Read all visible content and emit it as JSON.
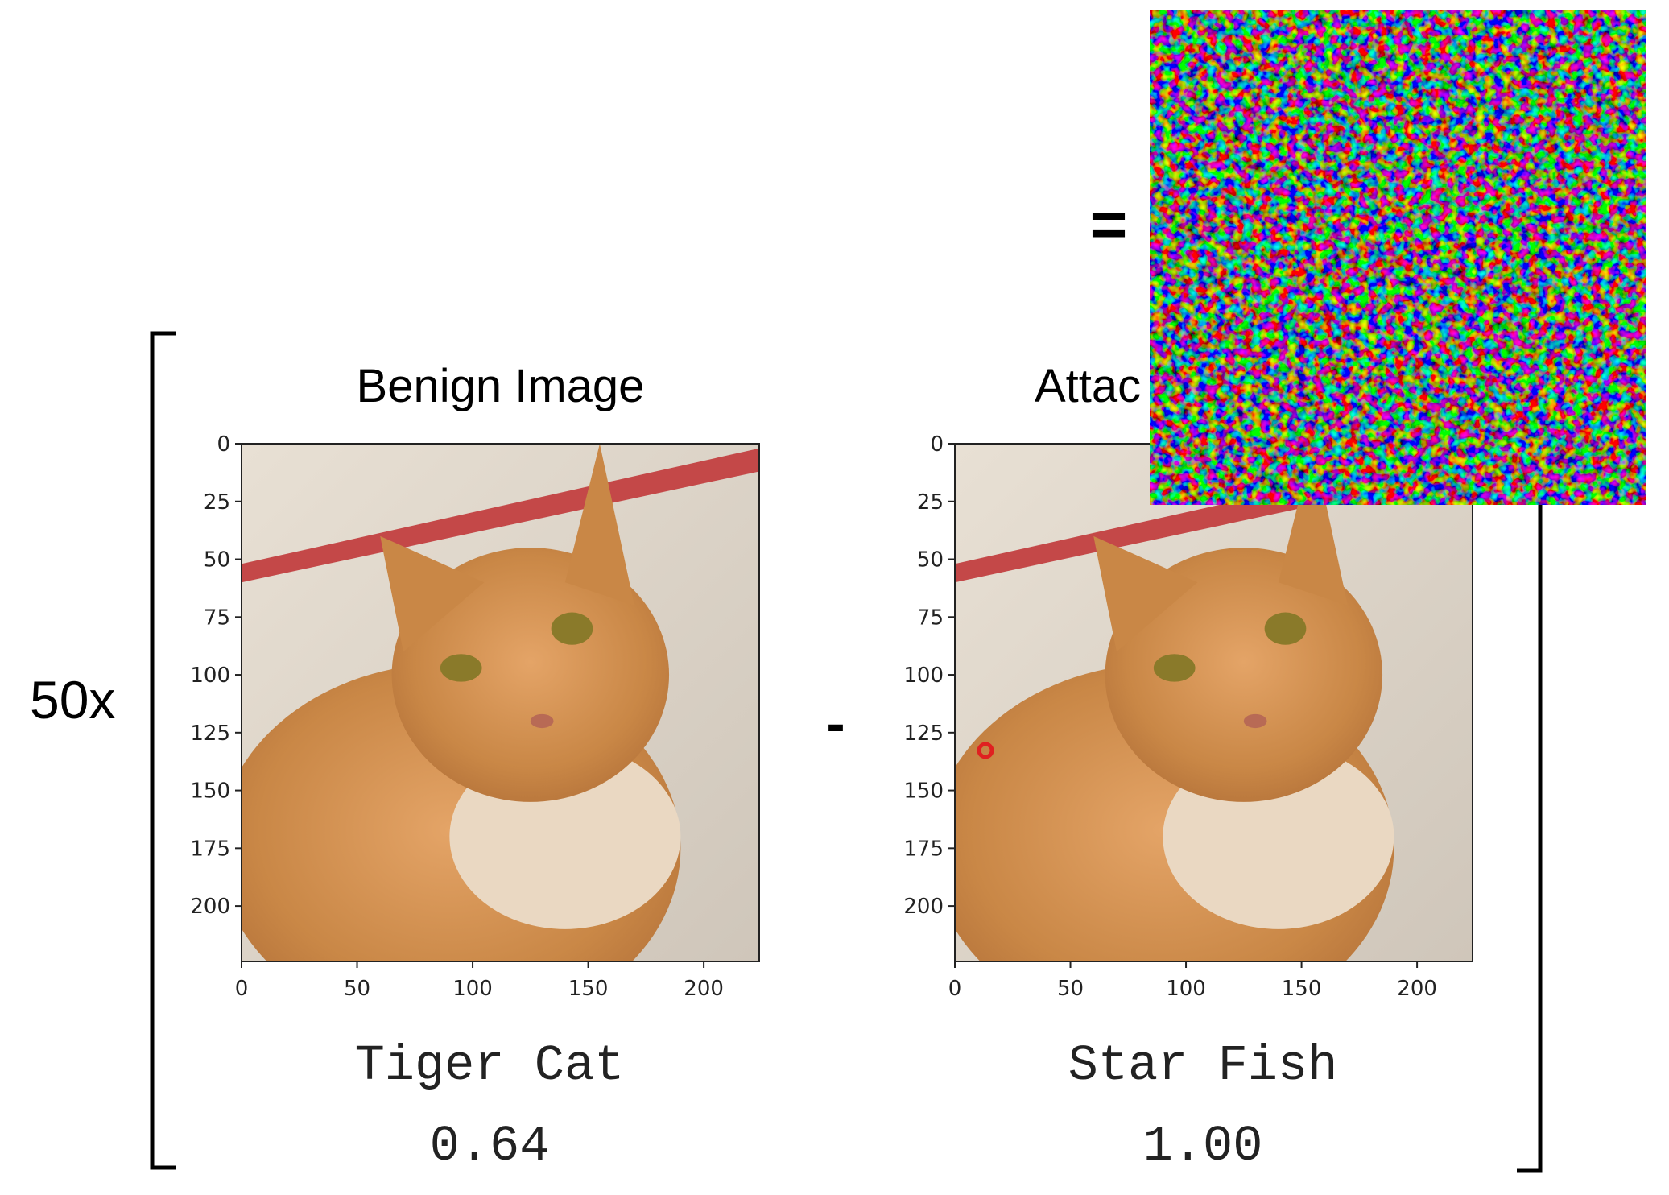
{
  "slide": {
    "multiplier": "50x",
    "minus": "-",
    "equals": "=",
    "panels": [
      {
        "title": "Benign Image",
        "xlim": [
          0,
          224
        ],
        "ylim": [
          0,
          224
        ],
        "xticks": [
          0,
          50,
          100,
          150,
          200
        ],
        "yticks": [
          0,
          25,
          50,
          75,
          100,
          125,
          150,
          175,
          200
        ],
        "label": "Tiger Cat",
        "score": "0.64"
      },
      {
        "title": "Attac",
        "xlim": [
          0,
          224
        ],
        "ylim": [
          0,
          224
        ],
        "xticks": [
          0,
          50,
          100,
          150,
          200
        ],
        "yticks": [
          0,
          25,
          50,
          75,
          100,
          125,
          150,
          175,
          200
        ],
        "label": "Star Fish",
        "score": "1.00"
      }
    ]
  }
}
